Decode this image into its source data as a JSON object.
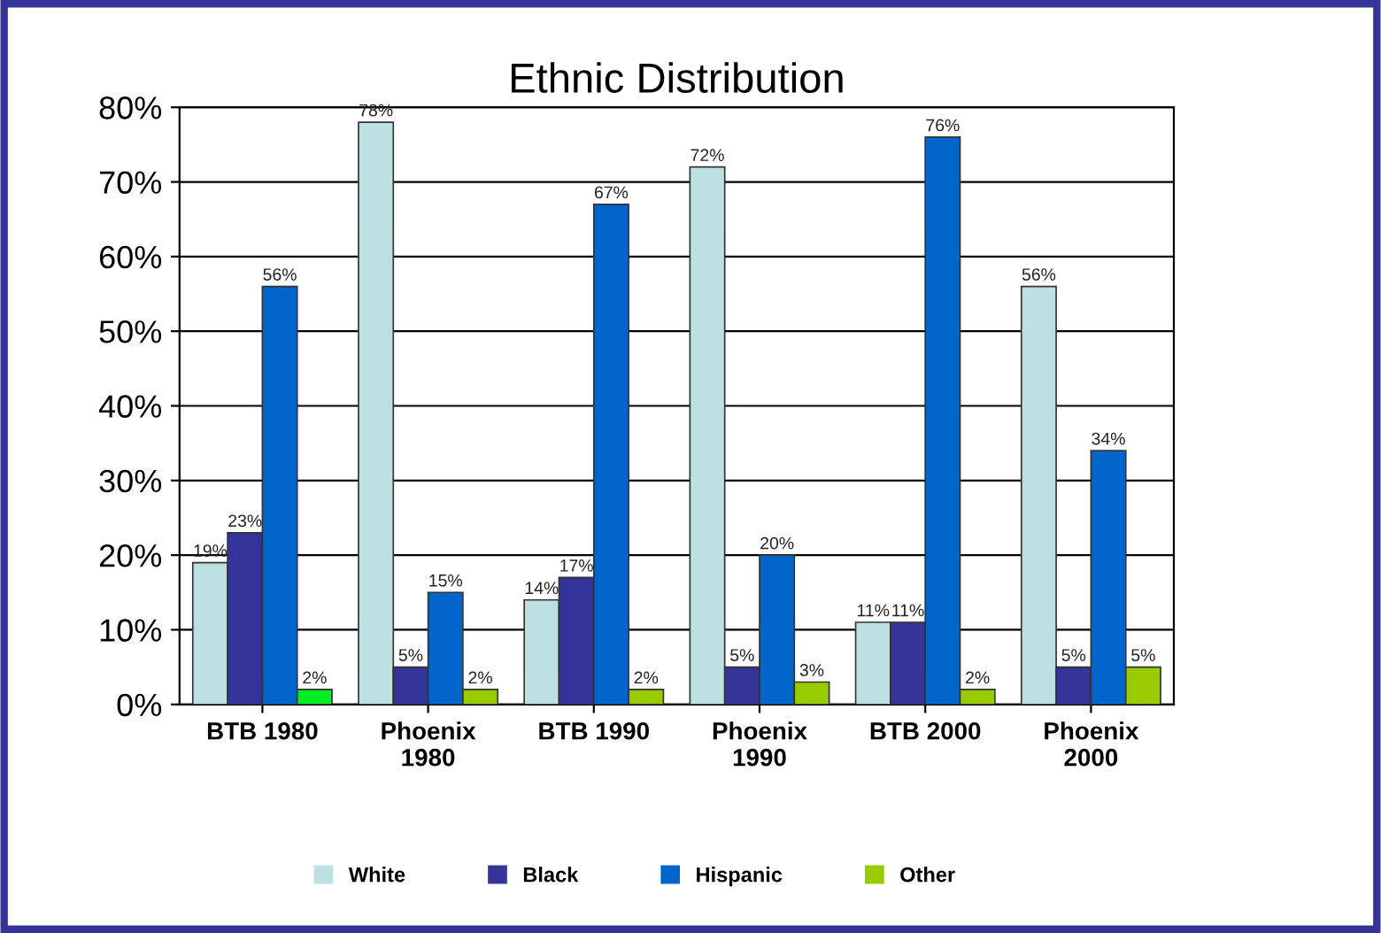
{
  "chart_data": {
    "type": "bar",
    "title": "Ethnic Distribution",
    "categories": [
      "BTB 1980",
      "Phoenix\n1980",
      "BTB 1990",
      "Phoenix\n1990",
      "BTB 2000",
      "Phoenix\n2000"
    ],
    "series": [
      {
        "name": "White",
        "color": "#bde0e3",
        "values": [
          19,
          78,
          14,
          72,
          11,
          56
        ],
        "value_labels": [
          "19%",
          "78%",
          "14%",
          "72%",
          "11%",
          "56%"
        ]
      },
      {
        "name": "Black",
        "color": "#333399",
        "values": [
          23,
          5,
          17,
          5,
          11,
          5
        ],
        "value_labels": [
          "23%",
          "5%",
          "17%",
          "5%",
          "11%",
          "5%"
        ]
      },
      {
        "name": "Hispanic",
        "color": "#0066cc",
        "values": [
          56,
          15,
          67,
          20,
          76,
          34
        ],
        "value_labels": [
          "56%",
          "15%",
          "67%",
          "20%",
          "76%",
          "34%"
        ]
      },
      {
        "name": "Other",
        "color": "#99cc00",
        "colors": [
          "#00ee22",
          "#99cc00",
          "#99cc00",
          "#99cc00",
          "#99cc00",
          "#99cc00"
        ],
        "values": [
          2,
          2,
          2,
          3,
          2,
          5
        ],
        "value_labels": [
          "2%",
          "2%",
          "2%",
          "3%",
          "2%",
          "5%"
        ]
      }
    ],
    "ylim": [
      0,
      80
    ],
    "yticks": [
      {
        "value": 0,
        "label": "0%"
      },
      {
        "value": 10,
        "label": "10%"
      },
      {
        "value": 20,
        "label": "20%"
      },
      {
        "value": 30,
        "label": "30%"
      },
      {
        "value": 40,
        "label": "40%"
      },
      {
        "value": 50,
        "label": "50%"
      },
      {
        "value": 60,
        "label": "60%"
      },
      {
        "value": 70,
        "label": "70%"
      },
      {
        "value": 80,
        "label": "80%"
      }
    ],
    "grid": "y",
    "legend": "bottom"
  }
}
